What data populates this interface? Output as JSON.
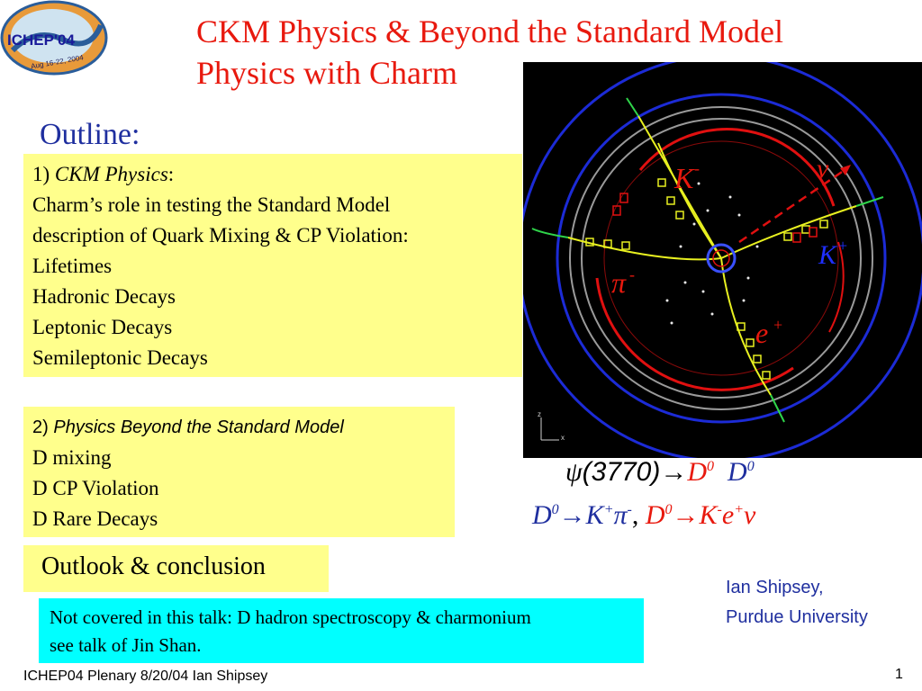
{
  "logo": {
    "text": "ICHEP'04",
    "dates": "Aug 16-22, 2004"
  },
  "title": {
    "line1": "CKM Physics & Beyond the Standard Model",
    "line2": "Physics with Charm"
  },
  "outline": {
    "heading": "Outline:"
  },
  "section1": {
    "number": "1)",
    "heading": "CKM Physics",
    "colon": ":",
    "items": [
      "Charm’s role  in testing the Standard Model",
      "description of  Quark Mixing & CP Violation:",
      "Lifetimes",
      "Hadronic Decays",
      "Leptonic Decays",
      "Semileptonic Decays"
    ]
  },
  "section2": {
    "number": "2)",
    "heading": "Physics Beyond the Standard Model",
    "items": [
      "D mixing",
      "D CP Violation",
      "D Rare Decays"
    ]
  },
  "outlook": {
    "label": "Outlook & conclusion"
  },
  "note": {
    "line1": "Not covered in this talk: D hadron spectroscopy & charmonium",
    "line2": "see talk of Jin Shan."
  },
  "event_display": {
    "labels": {
      "kminus": "K",
      "kminus_sup": "-",
      "nu": "ν",
      "kplus": "K",
      "kplus_sup": "+",
      "piminus": "π",
      "piminus_sup": "-",
      "eplus": "e",
      "eplus_sup": "+",
      "axis_z": "z",
      "axis_x": "x"
    },
    "colors": {
      "background": "#000000",
      "outer_ring": "#1c2bd6",
      "calorimeter": "#e01010",
      "track": "#e8f020",
      "red": "#e8190e",
      "blue": "#1f2f9f"
    }
  },
  "equations": {
    "eq1": {
      "psi": "ψ",
      "mass": "(3770)",
      "arrow": "→",
      "d": "D",
      "zero": "0",
      "d2": "D",
      "zero2": "0"
    },
    "eq2": {
      "d": "D",
      "zero": "0",
      "arrow": "→",
      "k": "K",
      "kp": "+",
      "pi": "π",
      "pim": "-",
      "comma": ",",
      "d2": "D",
      "zero2": "0",
      "arrow2": "→",
      "k2": "K",
      "km": "-",
      "e": "e",
      "ep": "+",
      "nu": "ν"
    }
  },
  "author": {
    "name": "Ian Shipsey,",
    "affiliation": "Purdue University"
  },
  "footer": {
    "text": "ICHEP04 Plenary 8/20/04 Ian Shipsey",
    "page": "1"
  }
}
